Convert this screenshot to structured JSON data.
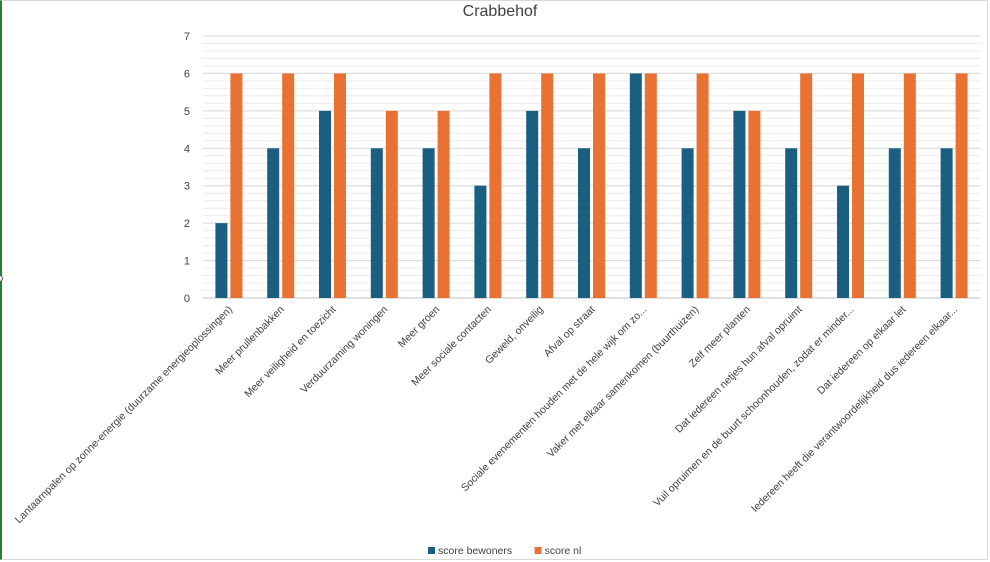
{
  "chart_data": {
    "type": "bar",
    "title": "Crabbehof",
    "xlabel": "",
    "ylabel": "",
    "ylim": [
      0,
      7
    ],
    "yticks": [
      0,
      1,
      2,
      3,
      4,
      5,
      6,
      7
    ],
    "grid": true,
    "minor_grid": true,
    "legend_position": "bottom",
    "categories": [
      "Lantaarnpalen op zonne-energie (duurzame energieoplossingen)",
      "Meer prullenbakken",
      "Meer veiligheid en toezicht",
      "Verduurzaming woningen",
      "Meer groen",
      "Meer sociale contacten",
      "Geweld, onveilig",
      "Afval op straat",
      "Sociale evenementen houden met de hele wijk om zo...",
      "Vaker met elkaar samenkomen (buurthuizen)",
      "Zelf meer planten",
      "Dat iedereen netjes hun afval opruimt",
      "Vuil opruimen en de buurt schoonhouden, zodat er minder...",
      "Dat iedereen op elkaar let",
      "Iedereen heeft die verantwoordelijkheid dus iedereen elkaar..."
    ],
    "series": [
      {
        "name": "score bewoners",
        "color": "#1a5f80",
        "values": [
          2,
          4,
          5,
          4,
          4,
          3,
          5,
          4,
          6,
          4,
          5,
          4,
          3,
          4,
          4
        ]
      },
      {
        "name": "score nl",
        "color": "#e97132",
        "values": [
          6,
          6,
          6,
          5,
          5,
          6,
          6,
          6,
          6,
          6,
          5,
          6,
          6,
          6,
          6
        ]
      }
    ]
  }
}
